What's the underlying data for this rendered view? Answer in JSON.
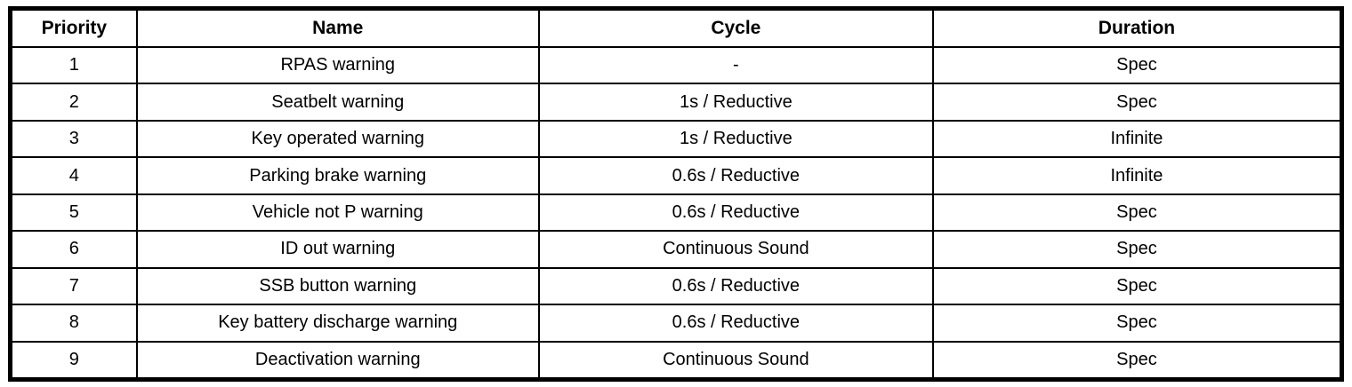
{
  "table": {
    "columns": [
      {
        "key": "priority",
        "label": "Priority"
      },
      {
        "key": "name",
        "label": "Name"
      },
      {
        "key": "cycle",
        "label": "Cycle"
      },
      {
        "key": "duration",
        "label": "Duration"
      }
    ],
    "rows": [
      {
        "priority": "1",
        "name": "RPAS warning",
        "cycle": "-",
        "duration": "Spec"
      },
      {
        "priority": "2",
        "name": "Seatbelt warning",
        "cycle": "1s / Reductive",
        "duration": "Spec"
      },
      {
        "priority": "3",
        "name": "Key operated warning",
        "cycle": "1s / Reductive",
        "duration": "Infinite"
      },
      {
        "priority": "4",
        "name": "Parking brake warning",
        "cycle": "0.6s / Reductive",
        "duration": "Infinite"
      },
      {
        "priority": "5",
        "name": "Vehicle not P warning",
        "cycle": "0.6s / Reductive",
        "duration": "Spec"
      },
      {
        "priority": "6",
        "name": "ID out warning",
        "cycle": "Continuous Sound",
        "duration": "Spec"
      },
      {
        "priority": "7",
        "name": "SSB button warning",
        "cycle": "0.6s / Reductive",
        "duration": "Spec"
      },
      {
        "priority": "8",
        "name": "Key battery discharge warning",
        "cycle": "0.6s / Reductive",
        "duration": "Spec"
      },
      {
        "priority": "9",
        "name": "Deactivation warning",
        "cycle": "Continuous Sound",
        "duration": "Spec"
      }
    ],
    "colors": {
      "border": "#000000",
      "background": "#ffffff",
      "text": "#000000"
    }
  }
}
